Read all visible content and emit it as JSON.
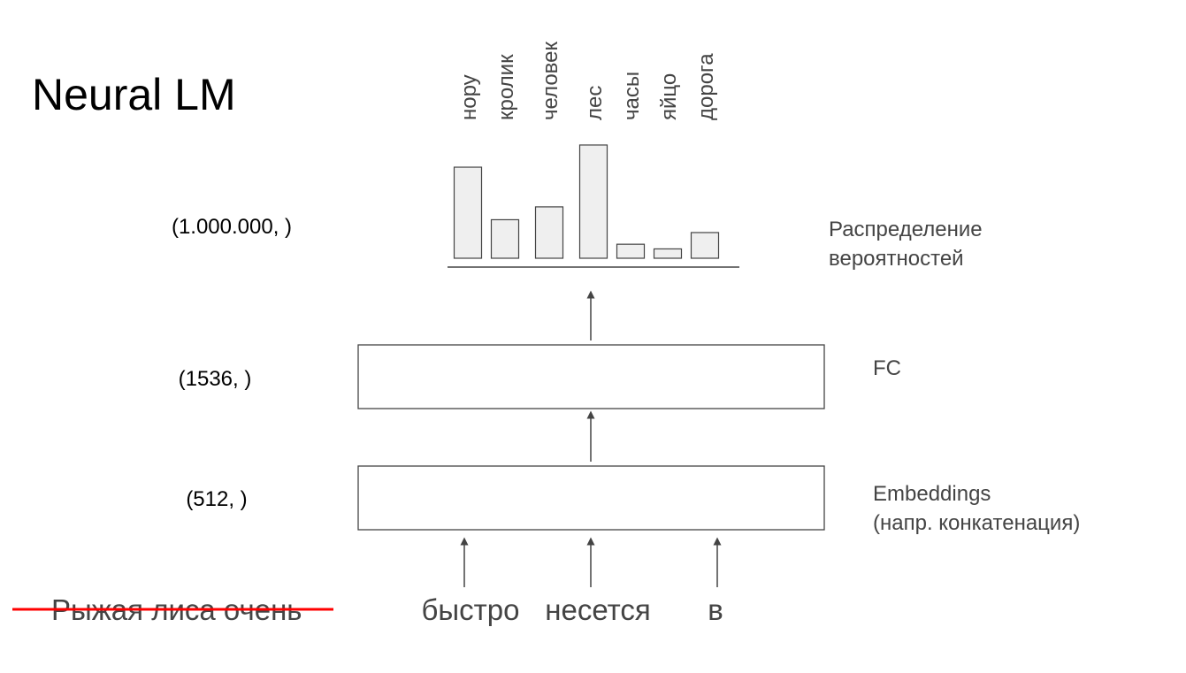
{
  "title": "Neural LM",
  "vocab_words": [
    "нору",
    "кролик",
    "человек",
    "лес",
    "часы",
    "яйцо",
    "дорога"
  ],
  "probabilities": [
    0.78,
    0.33,
    0.44,
    0.97,
    0.12,
    0.08,
    0.22
  ],
  "distribution": {
    "shape_label": "(1.000.000, )",
    "label_line1": "Распределение",
    "label_line2": "вероятностей"
  },
  "fc_layer": {
    "shape_label": "(1536, )",
    "label": "FC"
  },
  "embeddings_layer": {
    "shape_label": "(512, )",
    "label_line1": "Embeddings",
    "label_line2": "(напр. конкатенация)"
  },
  "input": {
    "struck_text": "Рыжая лиса очень",
    "context_words": [
      "быстро",
      "несется",
      "в"
    ]
  },
  "colors": {
    "bar_fill": "#efefef",
    "bar_stroke": "#444444",
    "text_dark": "#000000",
    "text_gray": "#444444",
    "strike": "#ff0000"
  }
}
